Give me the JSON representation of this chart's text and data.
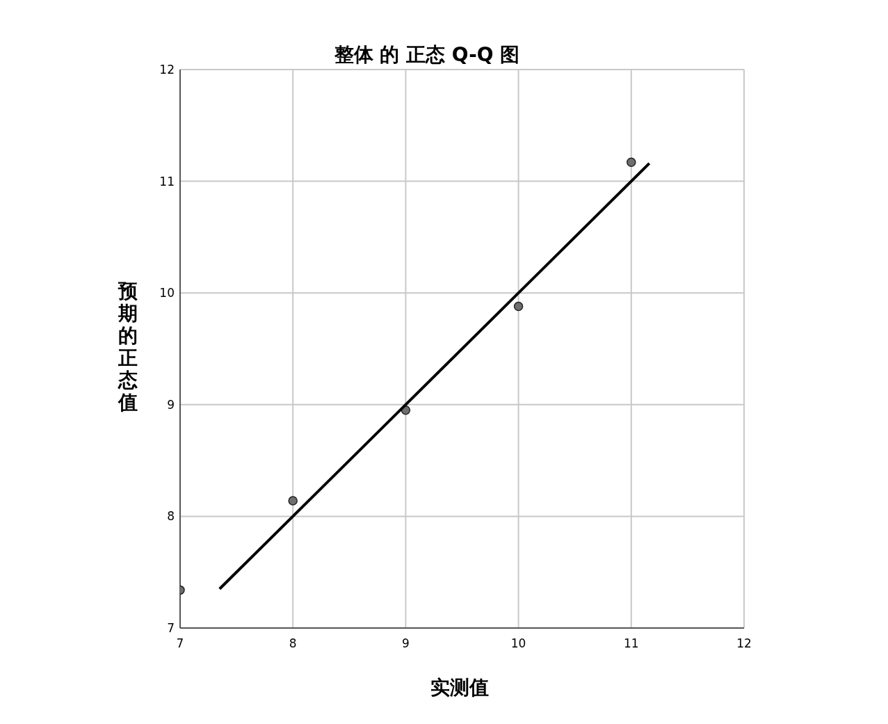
{
  "chart_data": {
    "type": "scatter",
    "title": "整体 的 正态 Q-Q 图",
    "xlabel": "实测值",
    "ylabel": "预期的正态值",
    "series": [
      {
        "color": "#6e6e6e",
        "x": [
          7,
          8,
          9,
          10,
          11
        ],
        "values": [
          7.34,
          8.14,
          8.95,
          9.88,
          11.17
        ],
        "marker": "circle"
      },
      {
        "type": "line",
        "color": "#000000",
        "x": [
          7.35,
          11.16
        ],
        "values": [
          7.35,
          11.16
        ],
        "marker": "none",
        "line_style": "solid"
      }
    ],
    "xlim": [
      7,
      12
    ],
    "xticks": [
      7,
      8,
      9,
      10,
      11,
      12
    ],
    "ylim": [
      7,
      12
    ],
    "yticks": [
      7,
      8,
      9,
      10,
      11,
      12
    ],
    "grid": true,
    "legend": false
  }
}
